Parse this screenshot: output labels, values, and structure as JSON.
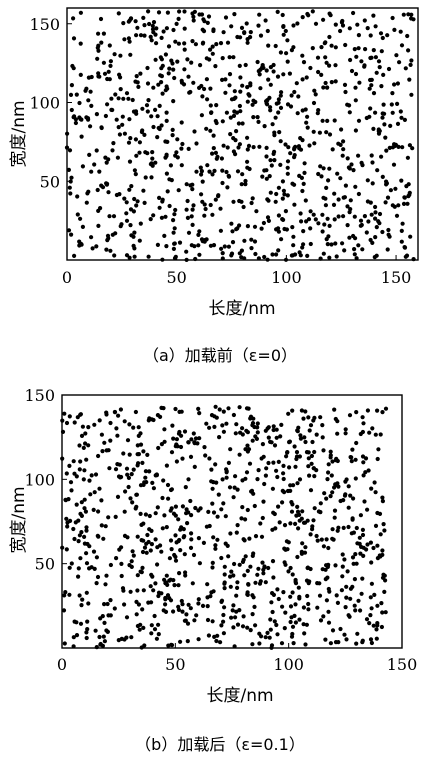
{
  "chart_data": [
    {
      "type": "scatter",
      "caption": "（a）加载前（ε=0）",
      "xlabel": "长度/nm",
      "ylabel": "宽度/nm",
      "xlim": [
        0,
        160
      ],
      "ylim": [
        0,
        160
      ],
      "xticks": [
        0,
        50,
        100,
        150
      ],
      "yticks": [
        50,
        100,
        150
      ],
      "marker_color": "#000000",
      "point_count": 1000,
      "point_extent": {
        "x": [
          0,
          158
        ],
        "y": [
          0,
          158
        ]
      },
      "seed": 12345,
      "grid": false
    },
    {
      "type": "scatter",
      "caption": "（b）加载后（ε=0.1）",
      "xlabel": "长度/nm",
      "ylabel": "宽度/nm",
      "xlim": [
        0,
        150
      ],
      "ylim": [
        0,
        150
      ],
      "xticks": [
        0,
        50,
        100,
        150
      ],
      "yticks": [
        50,
        100,
        150
      ],
      "marker_color": "#000000",
      "point_count": 1000,
      "point_extent": {
        "x": [
          0,
          143
        ],
        "y": [
          0,
          143
        ]
      },
      "seed": 67890,
      "grid": false
    }
  ]
}
